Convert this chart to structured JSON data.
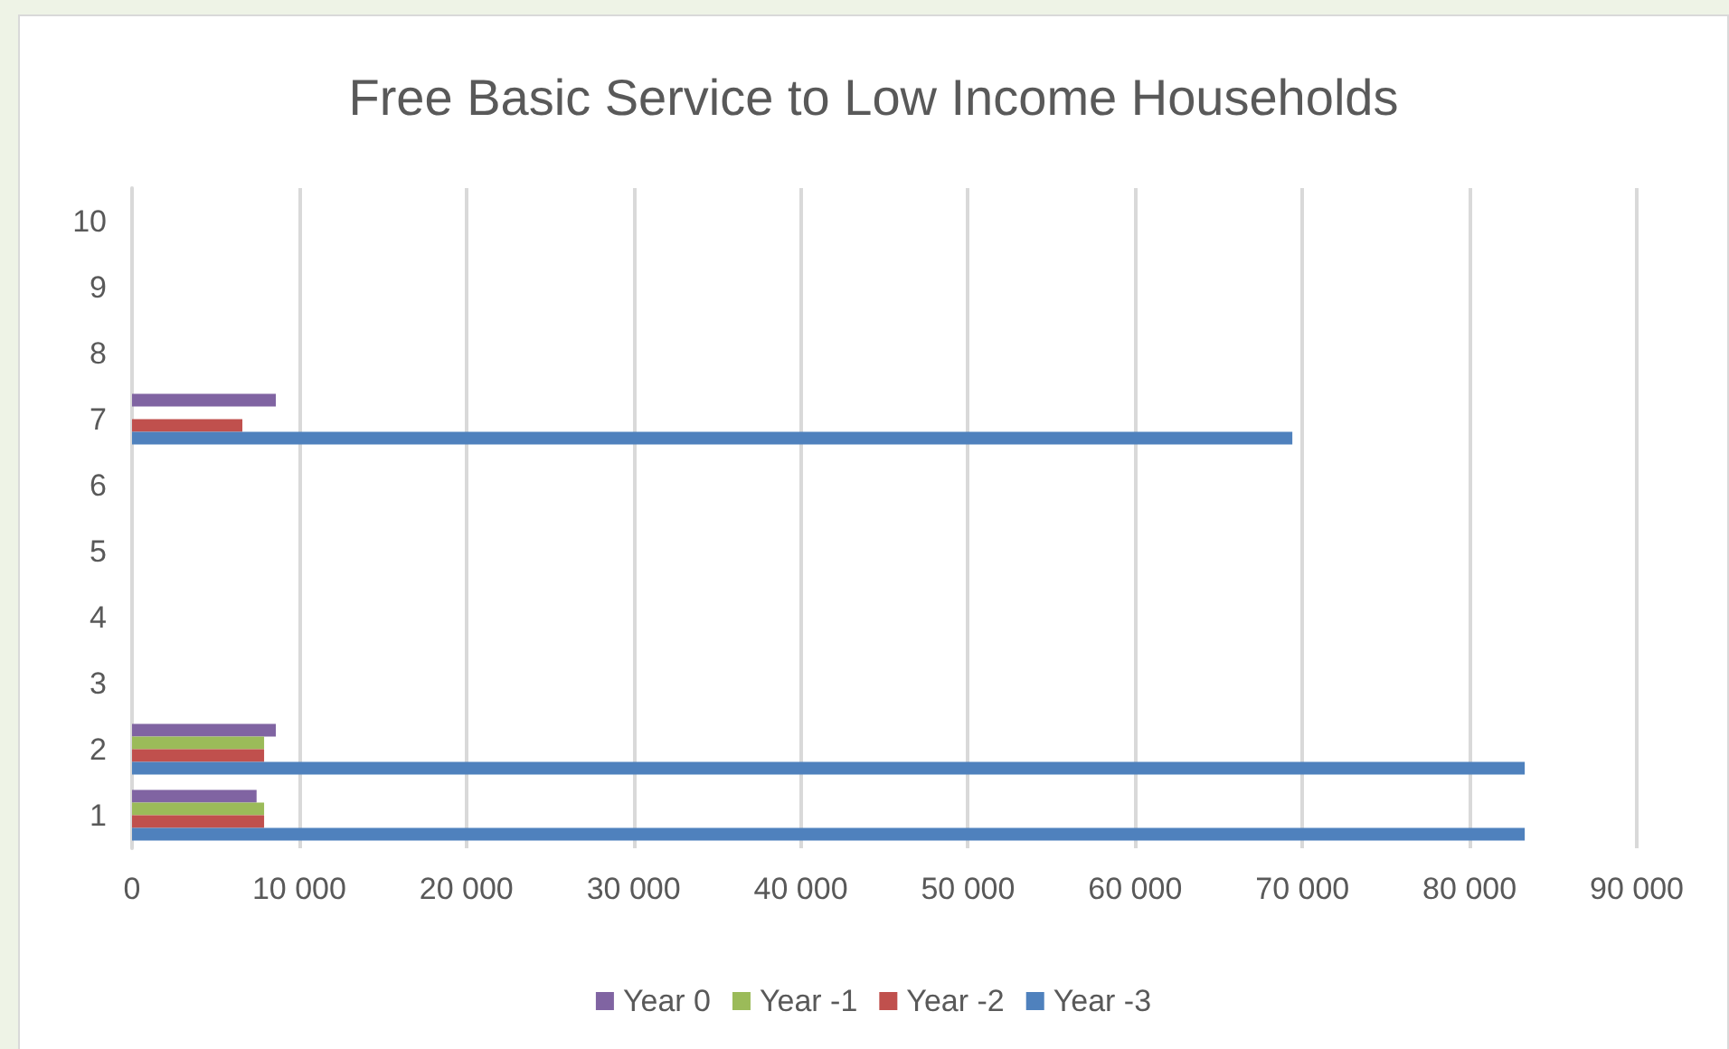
{
  "chart_data": {
    "type": "bar",
    "orientation": "horizontal",
    "title": "Free Basic Service to Low Income Households",
    "categories": [
      "10",
      "9",
      "8",
      "7",
      "6",
      "5",
      "4",
      "3",
      "2",
      "1"
    ],
    "series": [
      {
        "name": "Year 0",
        "color": "#8064a2",
        "values": [
          null,
          null,
          null,
          8600,
          null,
          null,
          null,
          null,
          8600,
          7450
        ]
      },
      {
        "name": "Year -1",
        "color": "#9bbb59",
        "values": [
          null,
          null,
          null,
          null,
          null,
          null,
          null,
          null,
          7900,
          7900
        ]
      },
      {
        "name": "Year -2",
        "color": "#c0504d",
        "values": [
          null,
          null,
          null,
          6600,
          null,
          null,
          null,
          null,
          7900,
          7900
        ]
      },
      {
        "name": "Year -3",
        "color": "#4f81bd",
        "values": [
          null,
          null,
          null,
          69400,
          null,
          null,
          null,
          null,
          83300,
          83300
        ]
      }
    ],
    "xlim": [
      0,
      90000
    ],
    "xticks": [
      0,
      {
        "value": 10000,
        "label": "10 000"
      },
      {
        "value": 20000,
        "label": "20 000"
      },
      {
        "value": 30000,
        "label": "30 000"
      },
      {
        "value": 40000,
        "label": "40 000"
      },
      {
        "value": 50000,
        "label": "50 000"
      },
      {
        "value": 60000,
        "label": "60 000"
      },
      {
        "value": 70000,
        "label": "70 000"
      },
      {
        "value": 80000,
        "label": "80 000"
      },
      {
        "value": 90000,
        "label": "90 000"
      }
    ],
    "grid": "x",
    "legend": "bottom"
  }
}
